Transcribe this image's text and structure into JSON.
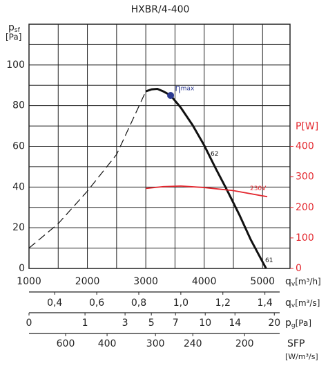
{
  "chart_data": {
    "type": "line",
    "title": "HXBR/4-400",
    "ylabel": "p",
    "ylabel_sub": "sf",
    "ylabel_unit": "[Pa]",
    "y2label": "P[W]",
    "y2color": "#e3262d",
    "xlabel": "q",
    "xlabel_sub": "v",
    "xlabel_unit": "[m³/h]",
    "xlim": [
      1000,
      5470
    ],
    "xticks": [
      1000,
      2000,
      3000,
      4000,
      5000
    ],
    "xminor": [
      1500,
      2500,
      3500,
      4500
    ],
    "ylim": [
      0,
      120
    ],
    "yticks": [
      0,
      20,
      40,
      60,
      80,
      100
    ],
    "yminor": [
      10,
      30,
      50,
      70,
      90,
      110
    ],
    "y2lim": [
      0,
      800
    ],
    "y2ticks": [
      0,
      100,
      200,
      300,
      400
    ],
    "grid": true,
    "series": [
      {
        "color": "#111111",
        "style": "dashed",
        "x": [
          1000,
          1500,
          2000,
          2500,
          3000
        ],
        "values": [
          10,
          22,
          38,
          56,
          87
        ]
      },
      {
        "color": "#111111",
        "style": "solid",
        "x": [
          3000,
          3100,
          3200,
          3300,
          3425,
          3600,
          3800,
          4000,
          4200,
          4400,
          4600,
          4800,
          5060
        ],
        "values": [
          87,
          88,
          88.2,
          87,
          85,
          79,
          70.5,
          60.5,
          49,
          38,
          26.5,
          14,
          0
        ]
      },
      {
        "color": "#e3262d",
        "style": "solid",
        "axis": "y2",
        "x": [
          3000,
          3300,
          3600,
          4000,
          4500,
          5080
        ],
        "values": [
          262,
          268,
          270,
          265,
          255,
          235
        ]
      }
    ],
    "eta_point": {
      "x": 3425,
      "y": 85,
      "color": "#2b3990"
    },
    "annotations": [
      {
        "text": "η",
        "sub": "max",
        "x": 3500,
        "y": 88.5,
        "color": "#2b3990"
      },
      {
        "text": "62",
        "x": 4110,
        "y": 56.5,
        "color": "#111111"
      },
      {
        "text": "61",
        "x": 5045,
        "y": 4,
        "color": "#111111"
      },
      {
        "text": "230V",
        "x": 4784,
        "y2": 263,
        "color": "#e3262d"
      }
    ],
    "qv_s_axis": {
      "label": "q",
      "sub": "v",
      "unit": "[m³/s]",
      "ticks": [
        {
          "value": 0.4,
          "label": "0,4",
          "qv": 1440
        },
        {
          "value": 0.6,
          "label": "0,6",
          "qv": 2160
        },
        {
          "value": 0.8,
          "label": "0,8",
          "qv": 2880
        },
        {
          "value": 1.0,
          "label": "1,0",
          "qv": 3600
        },
        {
          "value": 1.2,
          "label": "1,2",
          "qv": 4320
        },
        {
          "value": 1.4,
          "label": "1,4",
          "qv": 5040
        }
      ]
    },
    "pg_axis": {
      "label": "p",
      "sub": "g",
      "unit": "[Pa]",
      "ticks": [
        {
          "value": 0,
          "qv": 1000
        },
        {
          "value": 1,
          "qv": 1959
        },
        {
          "value": 3,
          "qv": 2645
        },
        {
          "value": 5,
          "qv": 3095
        },
        {
          "value": 7,
          "qv": 3509
        },
        {
          "value": 10,
          "qv": 4018
        },
        {
          "value": 14,
          "qv": 4527
        },
        {
          "value": 20,
          "qv": 5201
        }
      ]
    },
    "sfp_axis": {
      "label": "SFP",
      "unit": "[W/m³/s]",
      "ticks": [
        {
          "value": 600,
          "qv": 1627
        },
        {
          "value": 400,
          "qv": 2337
        },
        {
          "value": 300,
          "qv": 3166
        },
        {
          "value": 240,
          "qv": 3805
        },
        {
          "value": 200,
          "qv": 4692
        }
      ]
    }
  }
}
